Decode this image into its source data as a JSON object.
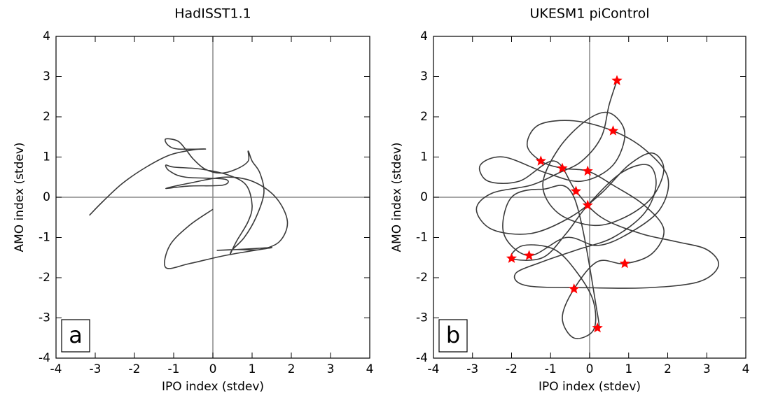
{
  "chart_data": [
    {
      "type": "line",
      "title": "HadISST1.1",
      "xlabel": "IPO index (stdev)",
      "ylabel": "AMO index (stdev)",
      "annotation": "a",
      "xlim": [
        -4,
        4
      ],
      "ylim": [
        -4,
        4
      ],
      "xticks": [
        -4,
        -3,
        -2,
        -1,
        0,
        1,
        2,
        3,
        4
      ],
      "yticks": [
        -4,
        -3,
        -2,
        -1,
        0,
        1,
        2,
        3,
        4
      ],
      "zero_lines": true,
      "series": [
        {
          "type": "line",
          "color": "#3a3a3a",
          "x": [
            -3.15,
            -2.8,
            -2.3,
            -1.7,
            -1.1,
            -0.5,
            -0.2,
            -0.9,
            -1.15,
            -1.2,
            -0.9,
            -0.7,
            -0.5,
            -0.2,
            0.2,
            0.6,
            0.9,
            0.9,
            1.0,
            1.2,
            1.3,
            1.1,
            0.8,
            0.5,
            0.45,
            0.6,
            0.9,
            1.0,
            0.85,
            0.4,
            -0.3,
            -1.0,
            -1.2,
            -1.1,
            -0.7,
            0.3,
            0.25,
            -0.6,
            -1.2,
            -0.6,
            0.3,
            1.0,
            1.6,
            1.9,
            1.7,
            1.2,
            0.6,
            0.1,
            0.6,
            1.0,
            1.5,
            1.2,
            0.3,
            -0.6,
            -1.2,
            -1.1,
            -0.6,
            0.0
          ],
          "values": [
            -0.45,
            -0.1,
            0.35,
            0.75,
            1.05,
            1.18,
            1.2,
            1.2,
            1.3,
            1.45,
            1.4,
            1.2,
            0.95,
            0.7,
            0.6,
            0.7,
            0.9,
            1.15,
            0.9,
            0.6,
            0.1,
            -0.5,
            -1.0,
            -1.3,
            -1.4,
            -1.1,
            -0.6,
            -0.2,
            0.3,
            0.55,
            0.7,
            0.75,
            0.8,
            0.65,
            0.5,
            0.45,
            0.3,
            0.28,
            0.22,
            0.35,
            0.5,
            0.4,
            0.0,
            -0.6,
            -1.1,
            -1.3,
            -1.3,
            -1.32,
            -1.3,
            -1.28,
            -1.25,
            -1.3,
            -1.45,
            -1.65,
            -1.75,
            -1.2,
            -0.7,
            -0.3
          ]
        }
      ]
    },
    {
      "type": "line",
      "title": "UKESM1 piControl",
      "xlabel": "IPO index (stdev)",
      "ylabel": "AMO index (stdev)",
      "annotation": "b",
      "xlim": [
        -4,
        4
      ],
      "ylim": [
        -4,
        4
      ],
      "xticks": [
        -4,
        -3,
        -2,
        -1,
        0,
        1,
        2,
        3,
        4
      ],
      "yticks": [
        -4,
        -3,
        -2,
        -1,
        0,
        1,
        2,
        3,
        4
      ],
      "zero_lines": true,
      "series": [
        {
          "type": "line",
          "color": "#3a3a3a",
          "x": [
            0.7,
            0.5,
            0.3,
            -0.2,
            -0.8,
            -1.5,
            -2.5,
            -2.9,
            -2.5,
            -1.5,
            -0.5,
            0.3,
            1.0,
            1.6,
            1.9,
            1.6,
            0.9,
            0.1,
            -0.8,
            -1.2,
            -0.8,
            -0.1,
            0.5,
            0.9,
            0.6,
            -0.2,
            -1.1,
            -2.2,
            -2.8,
            -2.6,
            -1.8,
            -0.9,
            -0.35,
            0.3,
            1.3,
            2.2,
            3.0,
            3.3,
            2.8,
            1.5,
            0.0,
            -1.6,
            -1.9,
            -1.2,
            -0.3,
            0.6,
            1.4,
            1.7,
            1.5,
            0.8,
            -0.05,
            -0.6,
            -1.2,
            -2.0,
            -1.7,
            -0.9,
            -0.3,
            0.1,
            0.1,
            -0.4,
            -0.7,
            -0.4,
            0.2,
            0.9,
            1.6,
            1.9,
            1.4,
            0.6,
            -0.05,
            -0.7,
            -1.25,
            -1.6,
            -1.3,
            -0.4,
            0.6,
            1.4,
            2.0,
            1.8,
            1.0,
            0.2,
            -0.6,
            -1.55,
            -2.2,
            -2.0,
            -1.2,
            -0.4,
            0.2,
            0.2
          ],
          "values": [
            2.9,
            2.3,
            1.5,
            0.9,
            0.6,
            0.3,
            0.1,
            -0.3,
            -0.8,
            -0.9,
            -0.5,
            0.1,
            0.8,
            1.1,
            0.7,
            0.0,
            -0.5,
            -0.7,
            -0.4,
            0.3,
            1.2,
            1.9,
            2.1,
            1.6,
            0.8,
            0.4,
            0.6,
            1.0,
            0.8,
            0.4,
            0.4,
            0.9,
            0.15,
            -0.5,
            -0.9,
            -1.1,
            -1.3,
            -1.7,
            -2.1,
            -2.25,
            -2.25,
            -2.2,
            -1.9,
            -1.6,
            -1.3,
            -1.0,
            -0.4,
            0.3,
            0.8,
            0.6,
            -0.2,
            -0.9,
            -1.5,
            -1.52,
            -1.2,
            -1.3,
            -1.9,
            -2.6,
            -3.3,
            -3.5,
            -3.0,
            -2.28,
            -1.6,
            -1.65,
            -1.4,
            -0.8,
            -0.2,
            0.3,
            0.65,
            0.72,
            0.9,
            1.3,
            1.8,
            1.9,
            1.65,
            1.2,
            0.5,
            -0.3,
            -0.9,
            -1.2,
            -1.0,
            -1.45,
            -0.9,
            0.0,
            0.2,
            0.0,
            -2.9,
            -3.25
          ]
        },
        {
          "type": "scatter",
          "marker": "star",
          "color": "#ff0000",
          "x": [
            0.7,
            0.6,
            -1.25,
            -0.7,
            -0.05,
            -0.35,
            -0.05,
            -2.0,
            -1.55,
            0.9,
            -0.4,
            0.2
          ],
          "values": [
            2.9,
            1.65,
            0.9,
            0.72,
            0.65,
            0.15,
            -0.2,
            -1.52,
            -1.45,
            -1.65,
            -2.28,
            -3.25
          ]
        }
      ]
    }
  ]
}
